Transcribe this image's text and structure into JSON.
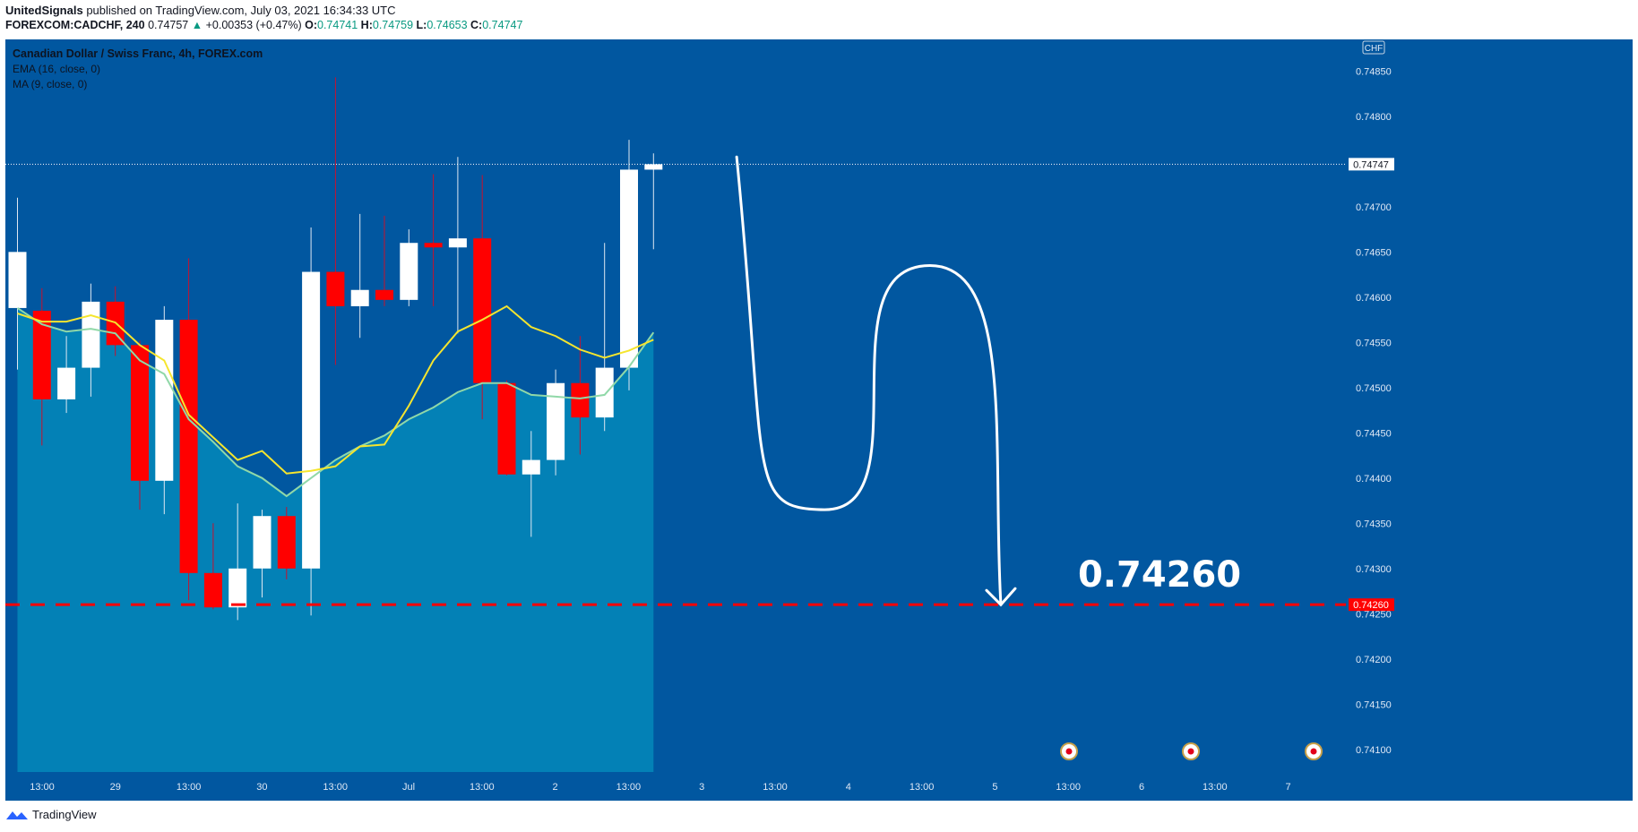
{
  "header": {
    "author": "UnitedSignals",
    "published_text": "published on TradingView.com, July 03, 2021 16:34:33 UTC",
    "symbol": "FOREXCOM:CADCHF, 240",
    "price": "0.74757",
    "arrow": "▲",
    "change": "+0.00353 (+0.47%)",
    "o_label": "O:",
    "o_value": "0.74741",
    "h_label": "H:",
    "h_value": "0.74759",
    "l_label": "L:",
    "l_value": "0.74653",
    "c_label": "C:",
    "c_value": "0.74747"
  },
  "legend": {
    "title": "Canadian Dollar / Swiss Franc, 4h, FOREX.com",
    "ema": "EMA (16, close, 0)",
    "ma": "MA (9, close, 0)"
  },
  "footer": {
    "brand": "TradingView"
  },
  "colors": {
    "background": "#0157a0",
    "area": "#0381b6",
    "up_candle": "#ffffff",
    "down_candle": "#ff0000",
    "ma_line": "#f5e52e",
    "ema_line": "#90d8a8",
    "target_line": "#ff0000"
  },
  "chart_data": {
    "type": "candlestick",
    "currency_label": "CHF",
    "ylim": [
      0.74075,
      0.74885
    ],
    "y_ticks": [
      "0.74850",
      "0.74800",
      "0.74750",
      "0.74700",
      "0.74650",
      "0.74600",
      "0.74550",
      "0.74500",
      "0.74450",
      "0.74400",
      "0.74350",
      "0.74300",
      "0.74250",
      "0.74200",
      "0.74150",
      "0.74100"
    ],
    "x_ticks": [
      "13:00",
      "29",
      "13:00",
      "30",
      "13:00",
      "Jul",
      "13:00",
      "2",
      "13:00",
      "3",
      "13:00",
      "4",
      "13:00",
      "5",
      "13:00",
      "6",
      "13:00",
      "7"
    ],
    "last_price_label": "0.74747",
    "target_label": "0.74260",
    "target_value": 0.7426,
    "annotation_text": "0.74260",
    "candles": [
      {
        "o": 0.74588,
        "h": 0.7471,
        "l": 0.7452,
        "c": 0.7465
      },
      {
        "o": 0.74585,
        "h": 0.7461,
        "l": 0.74436,
        "c": 0.74487
      },
      {
        "o": 0.74487,
        "h": 0.74557,
        "l": 0.74472,
        "c": 0.74522
      },
      {
        "o": 0.74522,
        "h": 0.74615,
        "l": 0.7449,
        "c": 0.74595
      },
      {
        "o": 0.74595,
        "h": 0.74612,
        "l": 0.74535,
        "c": 0.74547
      },
      {
        "o": 0.74547,
        "h": 0.74552,
        "l": 0.74365,
        "c": 0.74397
      },
      {
        "o": 0.74397,
        "h": 0.7459,
        "l": 0.7436,
        "c": 0.74575
      },
      {
        "o": 0.74575,
        "h": 0.74643,
        "l": 0.74265,
        "c": 0.74295
      },
      {
        "o": 0.74295,
        "h": 0.7435,
        "l": 0.74255,
        "c": 0.74257
      },
      {
        "o": 0.74257,
        "h": 0.74372,
        "l": 0.74243,
        "c": 0.743
      },
      {
        "o": 0.743,
        "h": 0.74365,
        "l": 0.74268,
        "c": 0.74358
      },
      {
        "o": 0.74358,
        "h": 0.74368,
        "l": 0.74288,
        "c": 0.743
      },
      {
        "o": 0.743,
        "h": 0.74677,
        "l": 0.74248,
        "c": 0.74628
      },
      {
        "o": 0.74628,
        "h": 0.74843,
        "l": 0.74525,
        "c": 0.7459
      },
      {
        "o": 0.7459,
        "h": 0.74692,
        "l": 0.74555,
        "c": 0.74608
      },
      {
        "o": 0.74608,
        "h": 0.7469,
        "l": 0.7459,
        "c": 0.74597
      },
      {
        "o": 0.74597,
        "h": 0.74675,
        "l": 0.7459,
        "c": 0.7466
      },
      {
        "o": 0.7466,
        "h": 0.74736,
        "l": 0.7459,
        "c": 0.74655
      },
      {
        "o": 0.74655,
        "h": 0.74755,
        "l": 0.7456,
        "c": 0.74665
      },
      {
        "o": 0.74665,
        "h": 0.74735,
        "l": 0.74465,
        "c": 0.74505
      },
      {
        "o": 0.74505,
        "h": 0.74508,
        "l": 0.74403,
        "c": 0.74404
      },
      {
        "o": 0.74404,
        "h": 0.74452,
        "l": 0.74335,
        "c": 0.7442
      },
      {
        "o": 0.7442,
        "h": 0.7452,
        "l": 0.74403,
        "c": 0.74505
      },
      {
        "o": 0.74505,
        "h": 0.74557,
        "l": 0.74426,
        "c": 0.74467
      },
      {
        "o": 0.74467,
        "h": 0.7466,
        "l": 0.74452,
        "c": 0.74522
      },
      {
        "o": 0.74522,
        "h": 0.74774,
        "l": 0.74497,
        "c": 0.74741
      },
      {
        "o": 0.74741,
        "h": 0.74759,
        "l": 0.74653,
        "c": 0.74747
      }
    ],
    "ma_values": [
      0.74582,
      0.74573,
      0.74573,
      0.7458,
      0.74572,
      0.74547,
      0.7453,
      0.7447,
      0.74445,
      0.7442,
      0.7443,
      0.74405,
      0.74408,
      0.74413,
      0.74435,
      0.74437,
      0.7448,
      0.7453,
      0.74562,
      0.74575,
      0.7459,
      0.74567,
      0.74557,
      0.74542,
      0.74533,
      0.74541,
      0.74553
    ],
    "ema_values": [
      0.74588,
      0.7457,
      0.74562,
      0.74565,
      0.7456,
      0.7453,
      0.74515,
      0.74465,
      0.7444,
      0.74413,
      0.744,
      0.7438,
      0.744,
      0.7442,
      0.74435,
      0.74447,
      0.74465,
      0.74478,
      0.74495,
      0.74505,
      0.74505,
      0.74492,
      0.7449,
      0.74488,
      0.74492,
      0.74523,
      0.74561
    ],
    "projection": [
      [
        3.4,
        0.74755
      ],
      [
        7.0,
        0.74365
      ],
      [
        11.3,
        0.74635
      ],
      [
        14.2,
        0.7426
      ]
    ]
  }
}
